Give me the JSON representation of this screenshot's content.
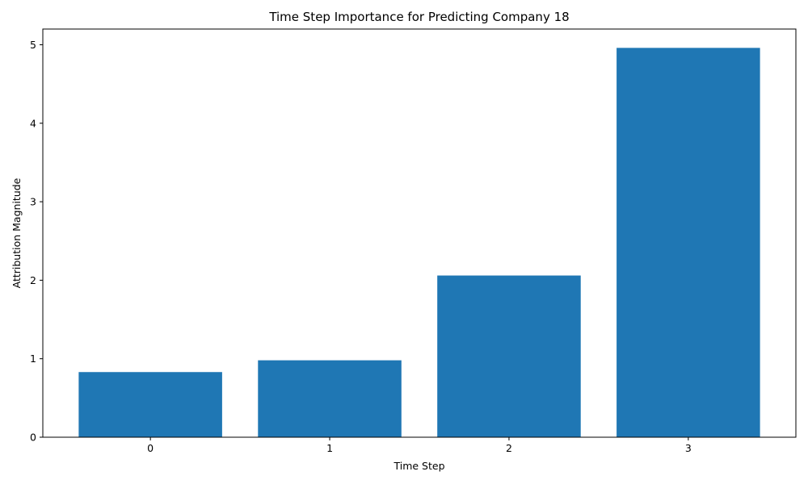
{
  "chart_data": {
    "type": "bar",
    "title": "Time Step Importance for Predicting Company 18",
    "xlabel": "Time Step",
    "ylabel": "Attribution Magnitude",
    "categories": [
      "0",
      "1",
      "2",
      "3"
    ],
    "values": [
      0.83,
      0.98,
      2.06,
      4.96
    ],
    "ylim": [
      0,
      5.2
    ],
    "yticks": [
      0,
      1,
      2,
      3,
      4,
      5
    ],
    "grid": false,
    "bar_color": "#1f77b4"
  }
}
